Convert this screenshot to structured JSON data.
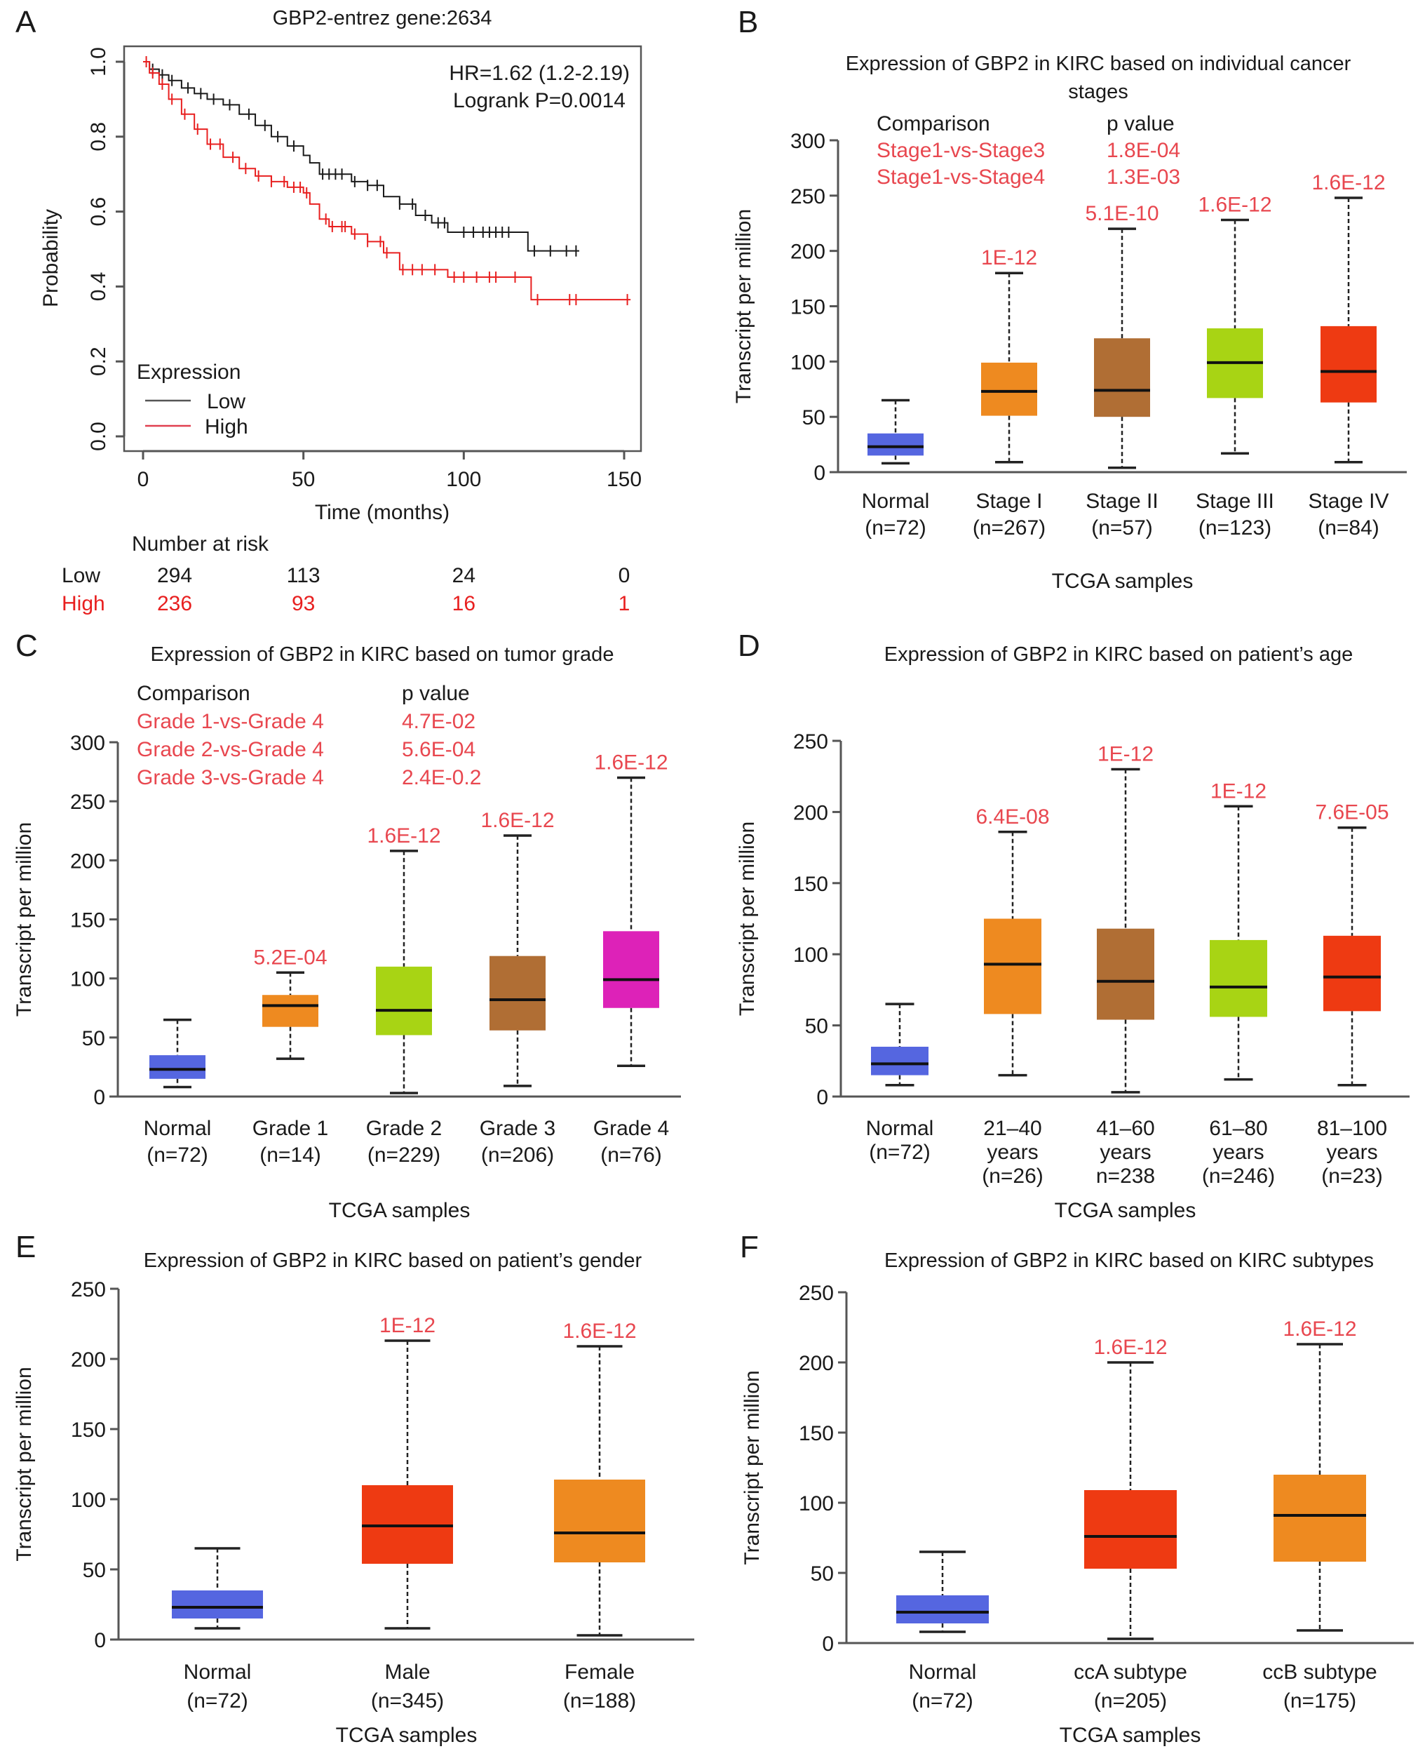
{
  "colors": {
    "normal": "#5566e0",
    "orange": "#ee8a20",
    "brown": "#b06e34",
    "lime": "#a8d414",
    "red": "#ee3a12",
    "magenta": "#dd22b8",
    "pvalue": "#e8474f",
    "km_low": "#1a1a1a",
    "km_high": "#e82020"
  },
  "chart_data": [
    {
      "panel": "A",
      "type": "line",
      "title": "GBP2-entrez gene:2634",
      "xlabel": "Time (months)",
      "ylabel": "Probability",
      "xlim": [
        0,
        150
      ],
      "ylim": [
        0,
        1
      ],
      "xticks": [
        "0",
        "50",
        "100",
        "150"
      ],
      "yticks": [
        "0.0",
        "0.2",
        "0.4",
        "0.6",
        "0.8",
        "1.0"
      ],
      "annotation": [
        "HR=1.62 (1.2-2.19)",
        "Logrank P=0.0014"
      ],
      "legend": {
        "title": "Expression",
        "position": "bottom-left",
        "entries": [
          "Low",
          "High"
        ]
      },
      "series": [
        {
          "name": "Low",
          "x": [
            0,
            2,
            5,
            8,
            12,
            16,
            20,
            25,
            30,
            35,
            40,
            45,
            50,
            52,
            55,
            60,
            65,
            70,
            75,
            80,
            85,
            90,
            95,
            100,
            110,
            118,
            120,
            136
          ],
          "y": [
            1.0,
            0.98,
            0.965,
            0.95,
            0.93,
            0.915,
            0.9,
            0.885,
            0.86,
            0.83,
            0.8,
            0.775,
            0.75,
            0.73,
            0.7,
            0.7,
            0.68,
            0.67,
            0.64,
            0.62,
            0.59,
            0.57,
            0.545,
            0.545,
            0.545,
            0.545,
            0.495,
            0.495
          ],
          "censor_x": [
            3,
            6,
            9,
            14,
            18,
            22,
            27,
            33,
            38,
            42,
            47,
            56,
            58,
            60,
            62,
            66,
            70,
            73,
            80,
            84,
            88,
            92,
            94,
            100,
            103,
            106,
            108,
            110,
            112,
            114,
            122,
            127,
            132,
            135
          ]
        },
        {
          "name": "High",
          "x": [
            0,
            2,
            5,
            8,
            12,
            16,
            20,
            25,
            30,
            35,
            40,
            45,
            50,
            52,
            55,
            58,
            62,
            65,
            70,
            75,
            80,
            90,
            95,
            100,
            110,
            120,
            121,
            152
          ],
          "y": [
            1.0,
            0.97,
            0.94,
            0.9,
            0.86,
            0.82,
            0.78,
            0.745,
            0.715,
            0.695,
            0.68,
            0.665,
            0.65,
            0.62,
            0.58,
            0.56,
            0.56,
            0.54,
            0.52,
            0.49,
            0.445,
            0.445,
            0.425,
            0.425,
            0.425,
            0.425,
            0.365,
            0.365
          ],
          "censor_x": [
            1,
            3,
            6,
            9,
            13,
            17,
            21,
            24,
            28,
            32,
            36,
            40,
            44,
            47,
            49,
            51,
            57,
            59,
            62,
            63,
            66,
            70,
            74,
            76,
            81,
            84,
            87,
            91,
            97,
            100,
            104,
            108,
            110,
            116,
            123,
            133,
            135,
            151
          ]
        }
      ],
      "risk_table": {
        "title": "Number at risk",
        "times": [
          0,
          50,
          100,
          150
        ],
        "rows": [
          {
            "label": "Low",
            "values": [
              "294",
              "113",
              "24",
              "0"
            ]
          },
          {
            "label": "High",
            "values": [
              "236",
              "93",
              "16",
              "1"
            ]
          }
        ]
      }
    },
    {
      "panel": "B",
      "type": "box",
      "title": [
        "Expression of GBP2 in KIRC based on individual cancer",
        "stages"
      ],
      "ylabel": "Transcript per million",
      "xlabel": "TCGA samples",
      "ylim": [
        0,
        300
      ],
      "yticks": [
        0,
        50,
        100,
        150,
        200,
        250,
        300
      ],
      "comparison": {
        "header": [
          "Comparison",
          "p value"
        ],
        "rows": [
          [
            "Stage1-vs-Stage3",
            "1.8E-04"
          ],
          [
            "Stage1-vs-Stage4",
            "1.3E-03"
          ]
        ]
      },
      "categories": [
        {
          "label": [
            "Normal",
            "(n=72)"
          ],
          "color": "normal",
          "min": 8,
          "q1": 15,
          "median": 23,
          "q3": 35,
          "max": 65,
          "pvalue": ""
        },
        {
          "label": [
            "Stage I",
            "(n=267)"
          ],
          "color": "orange",
          "min": 9,
          "q1": 51,
          "median": 73,
          "q3": 99,
          "max": 180,
          "pvalue": "1E-12"
        },
        {
          "label": [
            "Stage II",
            "(n=57)"
          ],
          "color": "brown",
          "min": 4,
          "q1": 50,
          "median": 74,
          "q3": 121,
          "max": 220,
          "pvalue": "5.1E-10"
        },
        {
          "label": [
            "Stage III",
            "(n=123)"
          ],
          "color": "lime",
          "min": 17,
          "q1": 67,
          "median": 99,
          "q3": 130,
          "max": 228,
          "pvalue": "1.6E-12"
        },
        {
          "label": [
            "Stage IV",
            "(n=84)"
          ],
          "color": "red",
          "min": 9,
          "q1": 63,
          "median": 91,
          "q3": 132,
          "max": 248,
          "pvalue": "1.6E-12"
        }
      ]
    },
    {
      "panel": "C",
      "type": "box",
      "title": [
        "Expression of GBP2 in KIRC based on tumor grade"
      ],
      "ylabel": "Transcript per million",
      "xlabel": "TCGA samples",
      "ylim": [
        0,
        300
      ],
      "yticks": [
        0,
        50,
        100,
        150,
        200,
        250,
        300
      ],
      "comparison": {
        "header": [
          "Comparison",
          "p value"
        ],
        "rows": [
          [
            "Grade 1-vs-Grade 4",
            "4.7E-02"
          ],
          [
            "Grade 2-vs-Grade 4",
            "5.6E-04"
          ],
          [
            "Grade 3-vs-Grade 4",
            "2.4E-0.2"
          ]
        ]
      },
      "categories": [
        {
          "label": [
            "Normal",
            "(n=72)"
          ],
          "color": "normal",
          "min": 8,
          "q1": 15,
          "median": 23,
          "q3": 35,
          "max": 65,
          "pvalue": ""
        },
        {
          "label": [
            "Grade 1",
            "(n=14)"
          ],
          "color": "orange",
          "min": 32,
          "q1": 59,
          "median": 77,
          "q3": 86,
          "max": 105,
          "pvalue": "5.2E-04"
        },
        {
          "label": [
            "Grade 2",
            "(n=229)"
          ],
          "color": "lime",
          "min": 3,
          "q1": 52,
          "median": 73,
          "q3": 110,
          "max": 208,
          "pvalue": "1.6E-12"
        },
        {
          "label": [
            "Grade 3",
            "(n=206)"
          ],
          "color": "brown",
          "min": 9,
          "q1": 56,
          "median": 82,
          "q3": 119,
          "max": 221,
          "pvalue": "1.6E-12"
        },
        {
          "label": [
            "Grade 4",
            "(n=76)"
          ],
          "color": "magenta",
          "min": 26,
          "q1": 75,
          "median": 99,
          "q3": 140,
          "max": 270,
          "pvalue": "1.6E-12"
        }
      ]
    },
    {
      "panel": "D",
      "type": "box",
      "title": [
        "Expression of GBP2 in KIRC based on patient’s age"
      ],
      "ylabel": "Transcript per million",
      "xlabel": "TCGA samples",
      "ylim": [
        0,
        250
      ],
      "yticks": [
        0,
        50,
        100,
        150,
        200,
        250
      ],
      "categories": [
        {
          "label": [
            "Normal",
            "(n=72)"
          ],
          "color": "normal",
          "min": 8,
          "q1": 15,
          "median": 23,
          "q3": 35,
          "max": 65,
          "pvalue": ""
        },
        {
          "label": [
            "21–40",
            "years",
            "(n=26)"
          ],
          "color": "orange",
          "min": 15,
          "q1": 58,
          "median": 93,
          "q3": 125,
          "max": 186,
          "pvalue": "6.4E-08"
        },
        {
          "label": [
            "41–60",
            "years",
            "n=238"
          ],
          "color": "brown",
          "min": 3,
          "q1": 54,
          "median": 81,
          "q3": 118,
          "max": 230,
          "pvalue": "1E-12"
        },
        {
          "label": [
            "61–80",
            "years",
            "(n=246)"
          ],
          "color": "lime",
          "min": 12,
          "q1": 56,
          "median": 77,
          "q3": 110,
          "max": 204,
          "pvalue": "1E-12"
        },
        {
          "label": [
            "81–100",
            "years",
            "(n=23)"
          ],
          "color": "red",
          "min": 8,
          "q1": 60,
          "median": 84,
          "q3": 113,
          "max": 189,
          "pvalue": "7.6E-05"
        }
      ]
    },
    {
      "panel": "E",
      "type": "box",
      "title": [
        "Expression of GBP2 in KIRC based on patient’s gender"
      ],
      "ylabel": "Transcript per million",
      "xlabel": "TCGA samples",
      "ylim": [
        0,
        250
      ],
      "yticks": [
        0,
        50,
        100,
        150,
        200,
        250
      ],
      "categories": [
        {
          "label": [
            "Normal",
            "(n=72)"
          ],
          "color": "normal",
          "min": 8,
          "q1": 15,
          "median": 23,
          "q3": 35,
          "max": 65,
          "pvalue": ""
        },
        {
          "label": [
            "Male",
            "(n=345)"
          ],
          "color": "red",
          "min": 8,
          "q1": 54,
          "median": 81,
          "q3": 110,
          "max": 213,
          "pvalue": "1E-12"
        },
        {
          "label": [
            "Female",
            "(n=188)"
          ],
          "color": "orange",
          "min": 3,
          "q1": 55,
          "median": 76,
          "q3": 114,
          "max": 209,
          "pvalue": "1.6E-12"
        }
      ]
    },
    {
      "panel": "F",
      "type": "box",
      "title": [
        "Expression of GBP2 in KIRC based on KIRC subtypes"
      ],
      "ylabel": "Transcript per million",
      "xlabel": "TCGA samples",
      "ylim": [
        0,
        250
      ],
      "yticks": [
        0,
        50,
        100,
        150,
        200,
        250
      ],
      "categories": [
        {
          "label": [
            "Normal",
            "(n=72)"
          ],
          "color": "normal",
          "min": 8,
          "q1": 14,
          "median": 22,
          "q3": 34,
          "max": 65,
          "pvalue": ""
        },
        {
          "label": [
            "ccA subtype",
            "(n=205)"
          ],
          "color": "red",
          "min": 3,
          "q1": 53,
          "median": 76,
          "q3": 109,
          "max": 200,
          "pvalue": "1.6E-12"
        },
        {
          "label": [
            "ccB subtype",
            "(n=175)"
          ],
          "color": "orange",
          "min": 9,
          "q1": 58,
          "median": 91,
          "q3": 120,
          "max": 213,
          "pvalue": "1.6E-12"
        }
      ]
    }
  ]
}
